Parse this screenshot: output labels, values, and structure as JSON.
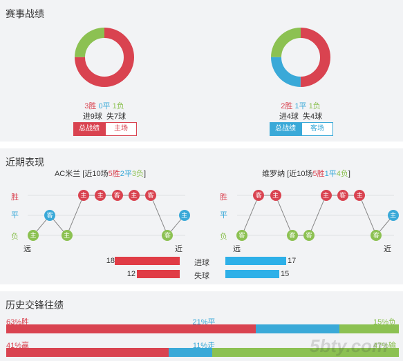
{
  "record": {
    "title": "赛事战绩",
    "left": {
      "w": "3胜",
      "d": "0平",
      "l": "1负",
      "goals": "进9球  失7球",
      "tab_active": "总战绩",
      "tab_other": "主场",
      "donut": {
        "win": 3,
        "draw": 0,
        "loss": 1
      }
    },
    "right": {
      "w": "2胜",
      "d": "1平",
      "l": "1负",
      "goals": "进4球  失4球",
      "tab_active": "总战绩",
      "tab_other": "客场",
      "donut": {
        "win": 2,
        "draw": 1,
        "loss": 1
      }
    }
  },
  "recent": {
    "title": "近期表现",
    "left": {
      "team": "AC米兰",
      "pre": "[近10场",
      "w": "5胜",
      "d": "2平",
      "l": "3负",
      "post": "]",
      "results": [
        "l",
        "d",
        "l",
        "w",
        "w",
        "w",
        "w",
        "w",
        "l",
        "d"
      ],
      "venues": [
        "主",
        "客",
        "主",
        "主",
        "主",
        "客",
        "主",
        "客",
        "客",
        "主"
      ]
    },
    "right": {
      "team": "维罗纳",
      "pre": "[近10场",
      "w": "5胜",
      "d": "1平",
      "l": "4负",
      "post": "]",
      "results": [
        "l",
        "w",
        "w",
        "l",
        "l",
        "w",
        "w",
        "w",
        "l",
        "d"
      ],
      "venues": [
        "客",
        "客",
        "主",
        "客",
        "客",
        "主",
        "客",
        "主",
        "客",
        "主"
      ]
    },
    "row_labels": {
      "w": "胜",
      "d": "平",
      "l": "负"
    },
    "far": "远",
    "near": "近",
    "stats": {
      "scored": {
        "label": "进球",
        "left": 18,
        "right": 17
      },
      "conceded": {
        "label": "失球",
        "left": 12,
        "right": 15
      }
    }
  },
  "history": {
    "title": "历史交锋往绩",
    "row1": {
      "a": "63%胜",
      "b": "21%平",
      "c": "15%负",
      "v": [
        63,
        21,
        15
      ]
    },
    "row2": {
      "a": "41%赢",
      "b": "11%走",
      "c": "47%输",
      "v": [
        41,
        11,
        47
      ]
    }
  },
  "watermark": "5bty.com",
  "colors": {
    "win": "#d94350",
    "draw": "#3aa9d8",
    "loss": "#8cc152"
  }
}
